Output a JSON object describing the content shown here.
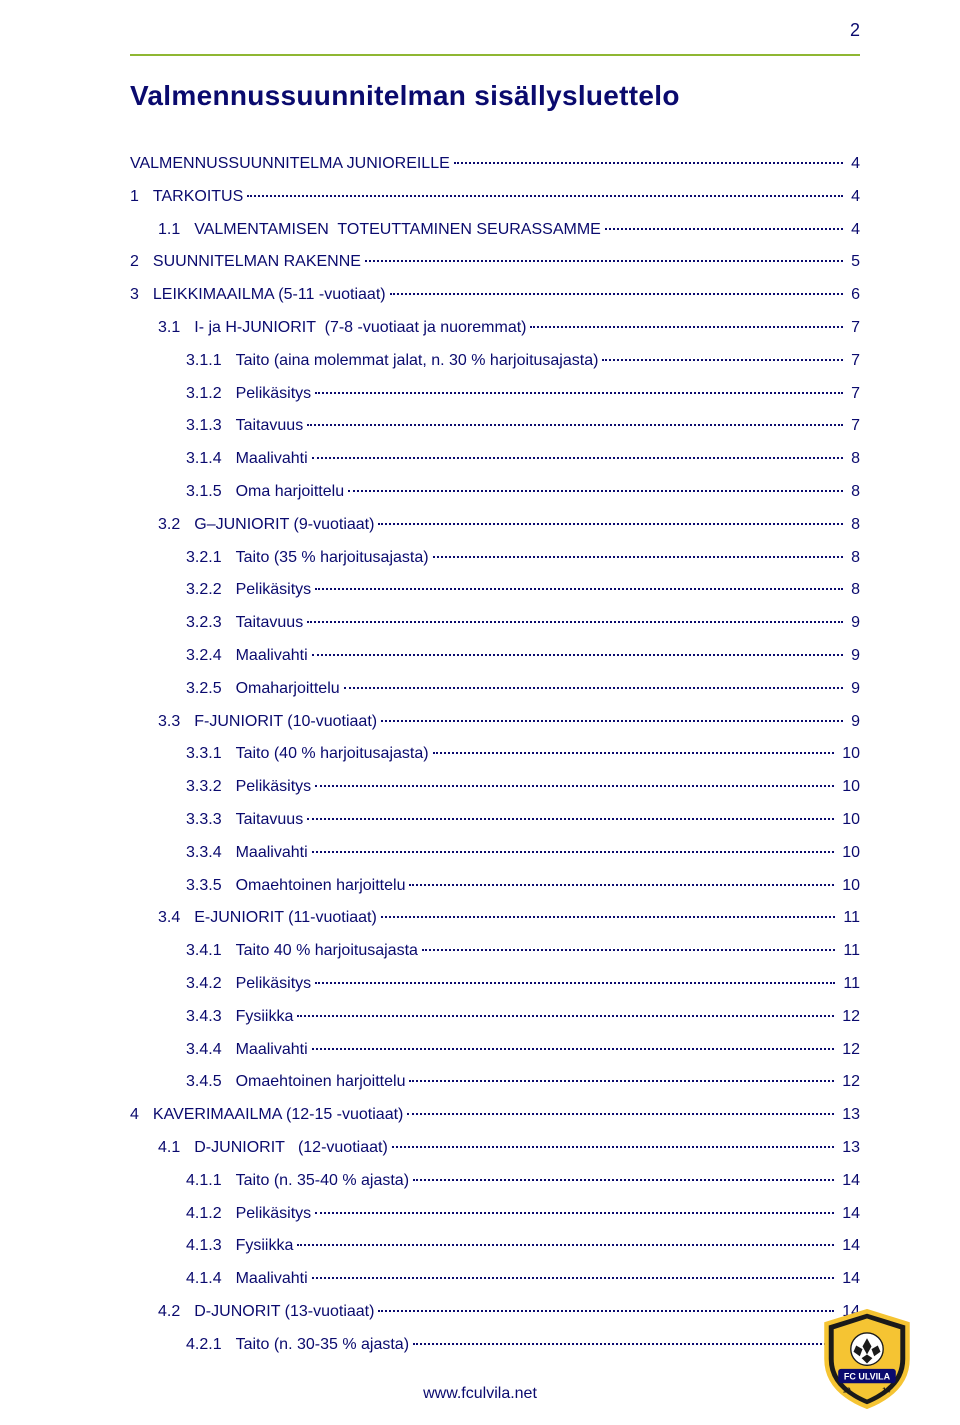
{
  "page_number": "2",
  "title": "Valmennussuunnitelman sisällysluettelo",
  "colors": {
    "text": "#0a0a6e",
    "accent_line": "#8fb733",
    "background": "#ffffff",
    "logo_yellow": "#f5c433",
    "logo_black": "#1a1a1a",
    "logo_blue": "#0a0a6e"
  },
  "typography": {
    "title_fontsize": 28,
    "body_fontsize": 16,
    "font_family": "Arial"
  },
  "footer_text": "www.fculvila.net",
  "logo": {
    "club_name": "FC ULVILA",
    "year_left": "19",
    "year_right": "14"
  },
  "toc": [
    {
      "num": "",
      "label": "VALMENNUSSUUNNITELMA JUNIOREILLE",
      "page": "4",
      "indent": 0
    },
    {
      "num": "1",
      "label": "TARKOITUS",
      "page": "4",
      "indent": 0
    },
    {
      "num": "1.1",
      "label": "VALMENTAMISEN  TOTEUTTAMINEN SEURASSAMME",
      "page": "4",
      "indent": 1
    },
    {
      "num": "2",
      "label": "SUUNNITELMAN RAKENNE",
      "page": "5",
      "indent": 0
    },
    {
      "num": "3",
      "label": "LEIKKIMAAILMA (5-11 -vuotiaat)",
      "page": "6",
      "indent": 0
    },
    {
      "num": "3.1",
      "label": "I- ja H-JUNIORIT  (7-8 -vuotiaat ja nuoremmat)",
      "page": "7",
      "indent": 1
    },
    {
      "num": "3.1.1",
      "label": "Taito (aina molemmat jalat, n. 30 % harjoitusajasta)",
      "page": "7",
      "indent": 2
    },
    {
      "num": "3.1.2",
      "label": "Pelikäsitys",
      "page": "7",
      "indent": 2
    },
    {
      "num": "3.1.3",
      "label": "Taitavuus",
      "page": "7",
      "indent": 2
    },
    {
      "num": "3.1.4",
      "label": "Maalivahti",
      "page": "8",
      "indent": 2
    },
    {
      "num": "3.1.5",
      "label": "Oma harjoittelu",
      "page": "8",
      "indent": 2
    },
    {
      "num": "3.2",
      "label": "G–JUNIORIT (9-vuotiaat)",
      "page": "8",
      "indent": 1
    },
    {
      "num": "3.2.1",
      "label": "Taito (35 % harjoitusajasta)",
      "page": "8",
      "indent": 2
    },
    {
      "num": "3.2.2",
      "label": "Pelikäsitys",
      "page": "8",
      "indent": 2
    },
    {
      "num": "3.2.3",
      "label": "Taitavuus",
      "page": "9",
      "indent": 2
    },
    {
      "num": "3.2.4",
      "label": "Maalivahti",
      "page": "9",
      "indent": 2
    },
    {
      "num": "3.2.5",
      "label": "Omaharjoittelu",
      "page": "9",
      "indent": 2
    },
    {
      "num": "3.3",
      "label": "F-JUNIORIT (10-vuotiaat)",
      "page": "9",
      "indent": 1
    },
    {
      "num": "3.3.1",
      "label": "Taito (40 % harjoitusajasta)",
      "page": "10",
      "indent": 2
    },
    {
      "num": "3.3.2",
      "label": "Pelikäsitys",
      "page": "10",
      "indent": 2
    },
    {
      "num": "3.3.3",
      "label": "Taitavuus",
      "page": "10",
      "indent": 2
    },
    {
      "num": "3.3.4",
      "label": "Maalivahti",
      "page": "10",
      "indent": 2
    },
    {
      "num": "3.3.5",
      "label": "Omaehtoinen harjoittelu",
      "page": "10",
      "indent": 2
    },
    {
      "num": "3.4",
      "label": "E-JUNIORIT (11-vuotiaat)",
      "page": "11",
      "indent": 1
    },
    {
      "num": "3.4.1",
      "label": "Taito 40 % harjoitusajasta",
      "page": "11",
      "indent": 2
    },
    {
      "num": "3.4.2",
      "label": "Pelikäsitys",
      "page": "11",
      "indent": 2
    },
    {
      "num": "3.4.3",
      "label": "Fysiikka",
      "page": "12",
      "indent": 2
    },
    {
      "num": "3.4.4",
      "label": "Maalivahti",
      "page": "12",
      "indent": 2
    },
    {
      "num": "3.4.5",
      "label": "Omaehtoinen harjoittelu",
      "page": "12",
      "indent": 2
    },
    {
      "num": "4",
      "label": "KAVERIMAAILMA (12-15 -vuotiaat)",
      "page": "13",
      "indent": 0
    },
    {
      "num": "4.1",
      "label": "D-JUNIORIT   (12-vuotiaat)",
      "page": "13",
      "indent": 1
    },
    {
      "num": "4.1.1",
      "label": "Taito (n. 35-40 % ajasta)",
      "page": "14",
      "indent": 2
    },
    {
      "num": "4.1.2",
      "label": "Pelikäsitys",
      "page": "14",
      "indent": 2
    },
    {
      "num": "4.1.3",
      "label": "Fysiikka",
      "page": "14",
      "indent": 2
    },
    {
      "num": "4.1.4",
      "label": "Maalivahti",
      "page": "14",
      "indent": 2
    },
    {
      "num": "4.2",
      "label": "D-JUNORIT (13-vuotiaat)",
      "page": "14",
      "indent": 1
    },
    {
      "num": "4.2.1",
      "label": "Taito (n. 30-35 % ajasta)",
      "page": "15",
      "indent": 2
    }
  ]
}
